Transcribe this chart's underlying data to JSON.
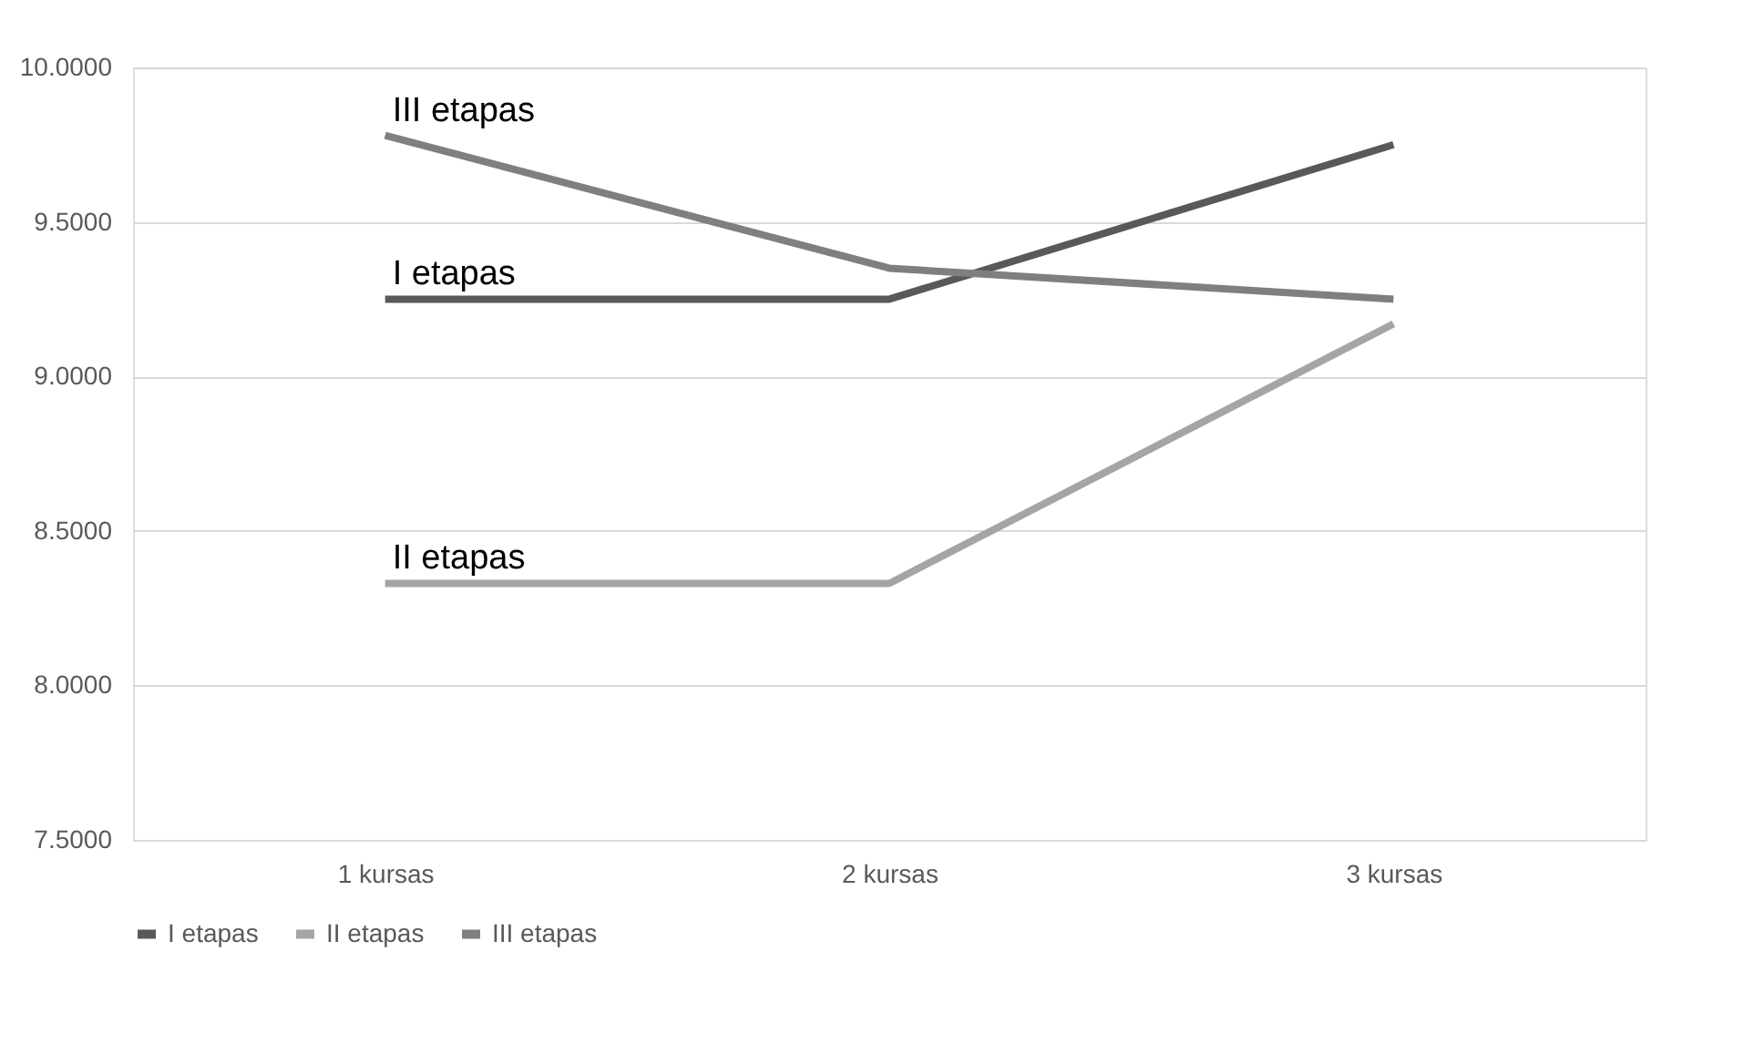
{
  "chart_data": {
    "type": "line",
    "categories": [
      "1 kursas",
      "2 kursas",
      "3 kursas"
    ],
    "series": [
      {
        "name": "I etapas",
        "color": "#595959",
        "values": [
          9.25,
          9.25,
          9.75
        ]
      },
      {
        "name": "II etapas",
        "color": "#a5a5a5",
        "values": [
          8.33,
          8.33,
          9.17
        ]
      },
      {
        "name": "III etapas",
        "color": "#7f7f7f",
        "values": [
          9.78,
          9.35,
          9.25
        ]
      }
    ],
    "ylim": [
      7.5,
      10.0
    ],
    "yticks": [
      {
        "value": 7.5,
        "label": "7.5000"
      },
      {
        "value": 8.0,
        "label": "8.0000"
      },
      {
        "value": 8.5,
        "label": "8.5000"
      },
      {
        "value": 9.0,
        "label": "9.0000"
      },
      {
        "value": 9.5,
        "label": "9.5000"
      },
      {
        "value": 10.0,
        "label": "10.0000"
      }
    ],
    "grid": "y",
    "legend": "bottom",
    "marker": "none",
    "line_style": "solid"
  }
}
